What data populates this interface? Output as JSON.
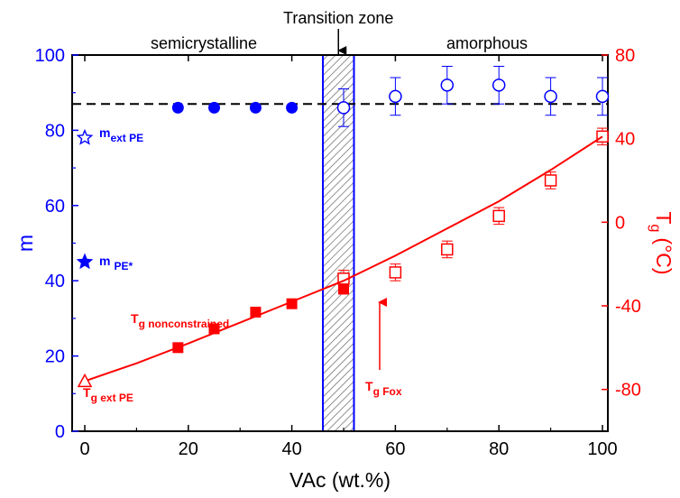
{
  "colors": {
    "left_axis": "#0000ff",
    "right_axis": "#ff0000",
    "frame": "#000000",
    "reference_line": "#000000",
    "zone_border": "#0000ff",
    "zone_hatch": "#666666"
  },
  "chart_data": {
    "type": "scatter",
    "xlabel": "VAc (wt.%)",
    "ylabel_left": "m",
    "ylabel_right": {
      "main": "T",
      "sub": "g",
      "unit": "(°C)"
    },
    "xlim": [
      0,
      100
    ],
    "ylim_left": [
      0,
      100
    ],
    "ylim_right": [
      -100,
      80
    ],
    "x_ticks": [
      0,
      20,
      40,
      60,
      80,
      100
    ],
    "y_left_ticks": [
      0,
      20,
      40,
      60,
      80,
      100
    ],
    "y_right_ticks": [
      -80,
      -40,
      0,
      40,
      80
    ],
    "grid": false,
    "region_labels": {
      "left": "semicrystalline",
      "right": "amorphous",
      "zone": "Transition zone"
    },
    "transition_zone": {
      "x_from": 46,
      "x_to": 52
    },
    "reference_line_m": 87,
    "series": [
      {
        "axis": "left",
        "marker": "circle-filled",
        "color": "#0000ff",
        "x": [
          18,
          25,
          33,
          40
        ],
        "y": [
          86,
          86,
          86,
          86
        ]
      },
      {
        "axis": "left",
        "marker": "circle-open",
        "color": "#0000ff",
        "x": [
          50,
          60,
          70,
          80,
          90,
          100
        ],
        "y": [
          86,
          89,
          92,
          92,
          89,
          89
        ],
        "err": [
          5,
          5,
          5,
          5,
          5,
          5
        ]
      },
      {
        "axis": "right",
        "marker": "square-filled",
        "color": "#ff0000",
        "x": [
          18,
          25,
          33,
          40,
          50
        ],
        "y": [
          -60,
          -51,
          -43,
          -39,
          -32
        ]
      },
      {
        "axis": "right",
        "marker": "square-open",
        "color": "#ff0000",
        "x": [
          50,
          60,
          70,
          80,
          90,
          100
        ],
        "y": [
          -27,
          -24,
          -13,
          3,
          20,
          41
        ],
        "err": [
          4,
          4,
          4,
          4,
          4,
          4
        ]
      },
      {
        "axis": "right",
        "marker": "curve",
        "color": "#ff0000",
        "x": [
          0,
          10,
          20,
          30,
          40,
          50,
          60,
          70,
          80,
          90,
          100
        ],
        "y": [
          -76,
          -67.5,
          -58,
          -48,
          -38,
          -28,
          -16,
          -3,
          10,
          25,
          41
        ]
      }
    ],
    "annotations": {
      "m_ext_pe": {
        "main": "m",
        "sub": "ext PE",
        "x": 0,
        "m": 78,
        "marker": "star-open"
      },
      "m_pe_star": {
        "main": "m",
        "sub": "PE*",
        "x": 0,
        "m": 45,
        "marker": "star-filled"
      },
      "tg_ext_pe": {
        "main": "T",
        "sub": "g ext PE",
        "x": 0,
        "tg": -76,
        "marker": "triangle-open"
      },
      "tg_nonconstrained": {
        "main": "T",
        "sub": "g nonconstrained"
      },
      "tg_fox": {
        "main": "T",
        "sub": "g Fox"
      }
    }
  }
}
